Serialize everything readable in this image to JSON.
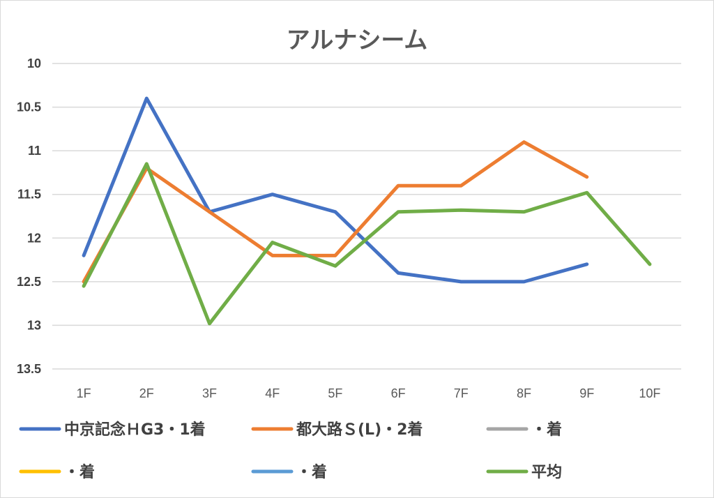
{
  "chart_data": {
    "type": "line",
    "title": "アルナシーム",
    "categories": [
      "1F",
      "2F",
      "3F",
      "4F",
      "5F",
      "6F",
      "7F",
      "8F",
      "9F",
      "10F"
    ],
    "y_ticks": [
      "10",
      "10.5",
      "11",
      "11.5",
      "12",
      "12.5",
      "13",
      "13.5"
    ],
    "ylim": [
      10,
      13.5
    ],
    "y_inverted": true,
    "grid": true,
    "legend_position": "bottom",
    "series": [
      {
        "name": "中京記念ＨG3・1着",
        "color": "#4472c4",
        "values": [
          12.2,
          10.4,
          11.7,
          11.5,
          11.7,
          12.4,
          12.5,
          12.5,
          12.3,
          null
        ]
      },
      {
        "name": "都大路Ｓ(L)・2着",
        "color": "#ed7d31",
        "values": [
          12.5,
          11.2,
          11.7,
          12.2,
          12.2,
          11.4,
          11.4,
          10.9,
          11.3,
          null
        ]
      },
      {
        "name": "・着",
        "color": "#a5a5a5",
        "values": [
          null,
          null,
          null,
          null,
          null,
          null,
          null,
          null,
          null,
          null
        ]
      },
      {
        "name": "・着",
        "color": "#ffc000",
        "values": [
          null,
          null,
          null,
          null,
          null,
          null,
          null,
          null,
          null,
          null
        ]
      },
      {
        "name": "・着",
        "color": "#5b9bd5",
        "values": [
          null,
          null,
          null,
          null,
          null,
          null,
          null,
          null,
          null,
          null
        ]
      },
      {
        "name": "平均",
        "color": "#70ad47",
        "values": [
          12.55,
          11.15,
          12.98,
          12.05,
          12.32,
          11.7,
          11.68,
          11.7,
          11.48,
          12.3
        ]
      }
    ]
  }
}
